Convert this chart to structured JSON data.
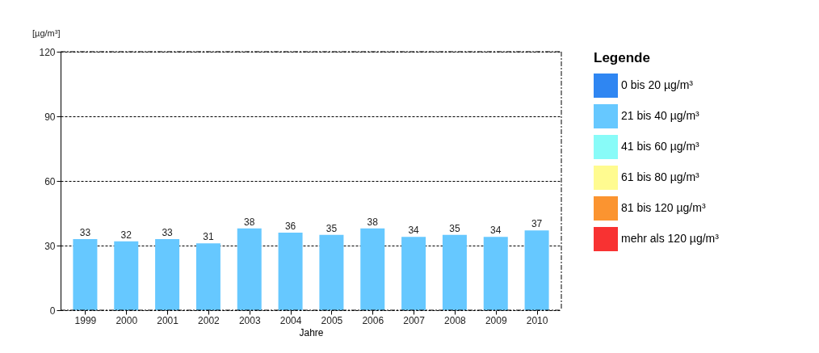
{
  "chart_data": {
    "type": "bar",
    "categories": [
      "1999",
      "2000",
      "2001",
      "2002",
      "2003",
      "2004",
      "2005",
      "2006",
      "2007",
      "2008",
      "2009",
      "2010"
    ],
    "series": [
      {
        "name": "0 bis 20 µg/m³",
        "color": "#2f86f2",
        "values": [
          null,
          null,
          null,
          null,
          null,
          null,
          null,
          null,
          null,
          null,
          null,
          null
        ]
      },
      {
        "name": "21 bis 40 µg/m³",
        "color": "#66c8ff",
        "values": [
          33,
          32,
          33,
          31,
          38,
          36,
          35,
          38,
          34,
          35,
          34,
          37
        ]
      },
      {
        "name": "41 bis 60 µg/m³",
        "color": "#88fbf8",
        "values": [
          null,
          null,
          null,
          null,
          null,
          null,
          null,
          null,
          null,
          null,
          null,
          null
        ]
      },
      {
        "name": "61 bis 80 µg/m³",
        "color": "#fffb90",
        "values": [
          null,
          null,
          null,
          null,
          null,
          null,
          null,
          null,
          null,
          null,
          null,
          null
        ]
      },
      {
        "name": "81 bis 120 µg/m³",
        "color": "#fb9430",
        "values": [
          null,
          null,
          null,
          null,
          null,
          null,
          null,
          null,
          null,
          null,
          null,
          null
        ]
      },
      {
        "name": "mehr als 120 µg/m³",
        "color": "#f83232",
        "values": [
          null,
          null,
          null,
          null,
          null,
          null,
          null,
          null,
          null,
          null,
          null,
          null
        ]
      }
    ],
    "ylabel": "[µg/m³]",
    "xlabel": "Jahre",
    "legend_title": "Legende",
    "ylim": [
      0,
      120
    ],
    "yticks": [
      0,
      30,
      60,
      90,
      120
    ],
    "grid": "y",
    "legend": "right",
    "data_labels": true
  }
}
